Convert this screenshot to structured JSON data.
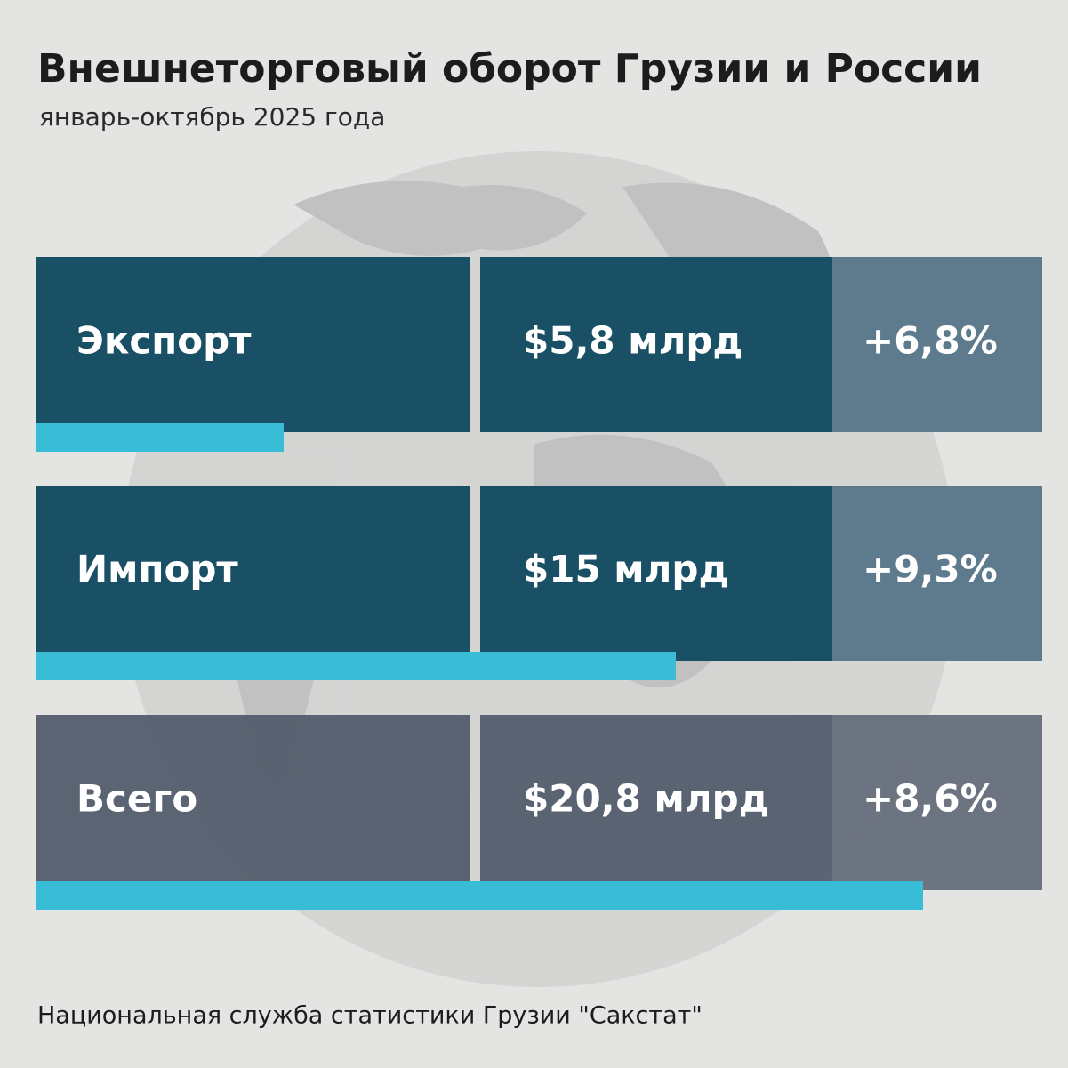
{
  "chart_data": {
    "type": "bar",
    "title": "Внешнеторговый оборот Грузии и России",
    "subtitle": "январь-октябрь 2025 года",
    "categories": [
      "Экспорт",
      "Импорт",
      "Всего"
    ],
    "values": [
      5.8,
      15,
      20.8
    ],
    "value_labels": [
      "$5,8 млрд",
      "$15 млрд",
      "$20,8 млрд"
    ],
    "change_labels": [
      "+6,8%",
      "+9,3%",
      "+8,6%"
    ],
    "color": "#39bcd6",
    "source": "Национальная служба статистики Грузии \"Сакстат\""
  }
}
